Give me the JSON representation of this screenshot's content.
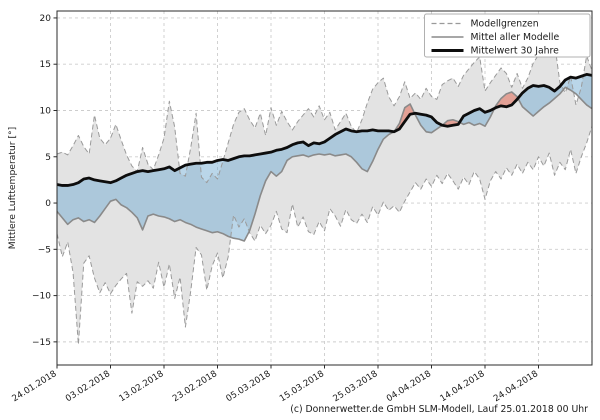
{
  "footer": "(c) Donnerwetter.de GmbH SLM-Modell, Lauf 25.01.2018 00 Uhr",
  "chart_data": {
    "type": "line",
    "title": "",
    "xlabel": "",
    "ylabel": "Mittlere Lufttemperatur [°]",
    "grid": true,
    "legend_position": "top-right",
    "legend": [
      {
        "label": "Modellgrenzen",
        "style": "dashed-gray"
      },
      {
        "label": "Mittel aller Modelle",
        "style": "solid-gray"
      },
      {
        "label": "Mittelwert 30 Jahre",
        "style": "solid-black-thick"
      }
    ],
    "ylim": [
      -17.5,
      20.75
    ],
    "yticks": [
      20,
      15,
      10,
      5,
      0,
      -5,
      -10,
      -15
    ],
    "x_unit": "days since 24.01.2018",
    "x_range_days": [
      0,
      100
    ],
    "xticks_days": [
      0,
      10,
      20,
      30,
      40,
      50,
      60,
      70,
      80,
      90
    ],
    "xtick_labels": [
      "24.01.2018",
      "03.02.2018",
      "13.02.2018",
      "23.02.2018",
      "05.03.2018",
      "15.03.2018",
      "25.03.2018",
      "04.04.2018",
      "14.04.2018",
      "24.04.2018"
    ],
    "series": [
      {
        "name": "Modellgrenzen (obere Grenze)",
        "values": [
          5.3,
          5.5,
          5.2,
          6.2,
          7.3,
          6.1,
          5.3,
          9.5,
          7.0,
          6.3,
          7.0,
          8.5,
          6.8,
          5.2,
          4.0,
          3.4,
          6.0,
          4.2,
          3.6,
          5.2,
          7.0,
          11.0,
          8.2,
          3.2,
          2.9,
          6.0,
          9.7,
          2.8,
          2.2,
          3.2,
          2.6,
          4.5,
          6.5,
          8.5,
          9.8,
          10.2,
          9.0,
          8.1,
          9.7,
          7.3,
          10.3,
          8.4,
          9.9,
          8.8,
          7.9,
          8.8,
          9.5,
          10.2,
          9.3,
          10.5,
          9.0,
          9.8,
          7.9,
          8.8,
          9.7,
          8.3,
          7.6,
          9.0,
          10.8,
          12.3,
          13.0,
          13.5,
          11.5,
          10.5,
          11.5,
          13.1,
          11.3,
          11.9,
          11.2,
          12.4,
          11.5,
          11.2,
          12.8,
          13.2,
          13.5,
          12.6,
          13.8,
          14.5,
          15.2,
          15.8,
          12.1,
          13.0,
          13.8,
          14.6,
          14.0,
          12.5,
          14.0,
          12.4,
          13.5,
          15.1,
          16.0,
          16.6,
          17.1,
          17.3,
          13.0,
          11.9,
          13.7,
          10.6,
          12.5,
          15.9,
          14.3
        ]
      },
      {
        "name": "Modellgrenzen (untere Grenze)",
        "values": [
          -3.3,
          -5.8,
          -4.2,
          -7.5,
          -15.3,
          -6.5,
          -5.7,
          -8.1,
          -9.7,
          -8.6,
          -9.8,
          -8.9,
          -8.2,
          -7.6,
          -11.9,
          -8.5,
          -9.0,
          -8.4,
          -9.2,
          -6.4,
          -9.1,
          -6.6,
          -10.3,
          -8.0,
          -13.4,
          -9.5,
          -4.8,
          -5.6,
          -9.4,
          -6.8,
          -5.4,
          -8.1,
          -5.8,
          -1.3,
          -2.6,
          -1.7,
          -3.2,
          -4.1,
          -2.4,
          -3.3,
          -2.4,
          -0.9,
          -2.8,
          -3.2,
          -0.1,
          -2.6,
          -1.5,
          -3.1,
          -3.4,
          -2.0,
          -3.0,
          -0.6,
          -1.4,
          -2.5,
          -0.7,
          -1.8,
          -2.2,
          -1.2,
          -2.1,
          -0.4,
          -1.3,
          0.1,
          -0.8,
          -0.3,
          -1.0,
          0.2,
          1.2,
          2.2,
          1.5,
          2.6,
          1.8,
          3.0,
          2.1,
          3.2,
          2.4,
          1.5,
          2.8,
          2.0,
          3.4,
          2.6,
          0.4,
          2.4,
          3.4,
          2.6,
          3.8,
          3.0,
          4.2,
          3.2,
          4.4,
          3.6,
          5.0,
          4.0,
          5.4,
          3.0,
          4.4,
          3.6,
          5.8,
          3.2,
          5.0,
          6.5,
          8.3
        ]
      },
      {
        "name": "Mittel aller Modelle",
        "values": [
          -0.9,
          -1.6,
          -2.3,
          -1.8,
          -1.6,
          -2.0,
          -1.8,
          -2.1,
          -1.4,
          -0.6,
          0.2,
          0.4,
          -0.2,
          -0.5,
          -1.0,
          -1.6,
          -2.9,
          -1.4,
          -1.2,
          -1.4,
          -1.5,
          -1.7,
          -2.0,
          -1.8,
          -2.1,
          -2.3,
          -2.6,
          -2.8,
          -3.0,
          -3.2,
          -3.1,
          -3.3,
          -3.6,
          -3.8,
          -3.9,
          -4.1,
          -3.0,
          -1.2,
          0.8,
          2.4,
          3.4,
          2.9,
          3.4,
          4.6,
          5.0,
          5.1,
          5.2,
          5.0,
          5.2,
          5.3,
          5.2,
          5.3,
          5.1,
          5.2,
          5.3,
          5.0,
          4.4,
          3.7,
          3.4,
          4.5,
          5.8,
          6.9,
          7.4,
          7.7,
          8.6,
          10.3,
          10.7,
          9.5,
          8.4,
          7.7,
          7.6,
          8.0,
          8.4,
          8.9,
          9.0,
          8.8,
          8.5,
          8.7,
          8.4,
          8.6,
          8.3,
          9.3,
          10.5,
          11.3,
          11.8,
          12.0,
          11.5,
          10.4,
          9.9,
          9.4,
          9.9,
          10.4,
          10.8,
          11.3,
          11.8,
          12.5,
          12.2,
          11.8,
          11.2,
          10.6,
          10.2
        ]
      },
      {
        "name": "Mittelwert 30 Jahre",
        "values": [
          2.0,
          1.9,
          1.9,
          2.0,
          2.2,
          2.6,
          2.7,
          2.5,
          2.4,
          2.3,
          2.2,
          2.4,
          2.7,
          3.0,
          3.2,
          3.4,
          3.5,
          3.4,
          3.5,
          3.6,
          3.7,
          3.9,
          3.5,
          3.8,
          4.1,
          4.2,
          4.3,
          4.3,
          4.4,
          4.4,
          4.6,
          4.7,
          4.6,
          4.8,
          5.0,
          5.1,
          5.1,
          5.2,
          5.3,
          5.4,
          5.5,
          5.7,
          5.8,
          6.0,
          6.3,
          6.5,
          6.6,
          6.2,
          6.5,
          6.4,
          6.6,
          7.0,
          7.4,
          7.7,
          8.0,
          7.8,
          7.7,
          7.8,
          7.8,
          7.9,
          7.8,
          7.8,
          7.8,
          7.7,
          8.0,
          8.8,
          9.6,
          9.7,
          9.6,
          9.5,
          9.3,
          8.7,
          8.4,
          8.3,
          8.4,
          8.5,
          9.4,
          9.7,
          10.0,
          10.2,
          9.8,
          10.0,
          10.3,
          10.5,
          10.4,
          10.6,
          11.2,
          11.9,
          12.4,
          12.7,
          12.6,
          12.7,
          12.5,
          12.1,
          12.6,
          13.3,
          13.6,
          13.5,
          13.7,
          13.9,
          13.8
        ]
      }
    ],
    "colors": {
      "envelope_fill": "#e3e3e3",
      "bound_line": "#9a9a9a",
      "mean_line": "#8a8a8a",
      "mean30_line": "#0d0d0d",
      "below_normal_fill": "rgba(118,173,212,0.5)",
      "above_normal_fill": "rgba(226,106,85,0.55)",
      "grid": "#cdcdcd",
      "spine": "#2b2b2b",
      "text": "#1a1a1a"
    }
  }
}
